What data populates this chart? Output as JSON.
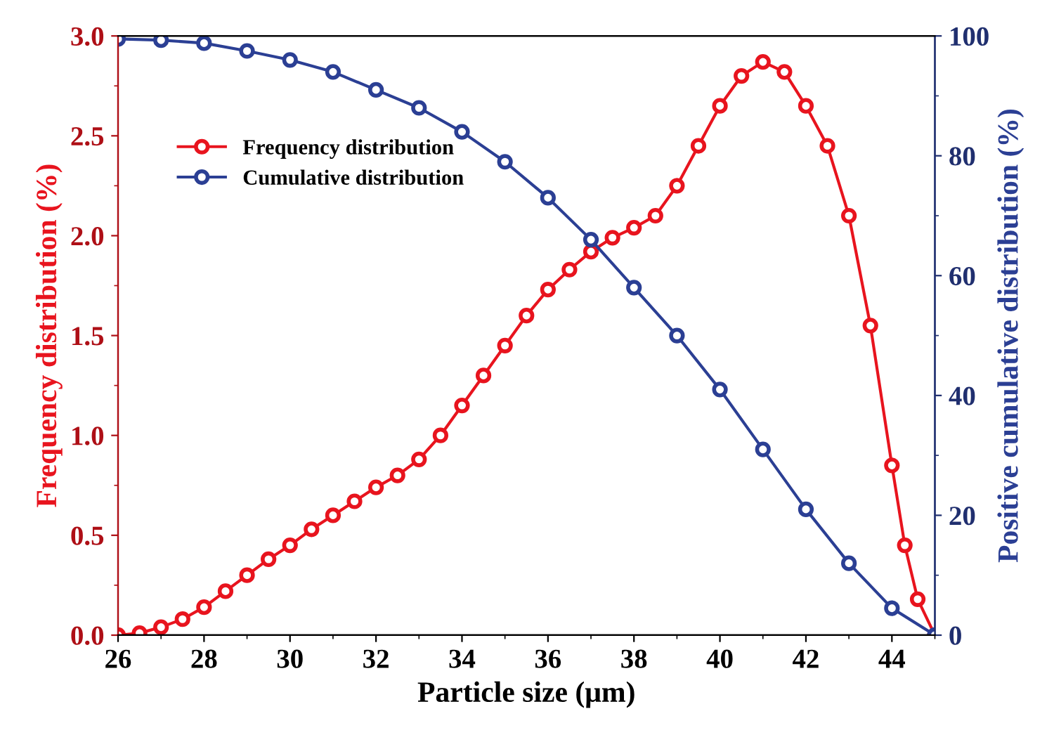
{
  "chart_data": {
    "type": "line",
    "xlabel": "Particle size (μm)",
    "ylabel": "Frequency distribution (%)",
    "y2label": "Positive cumulative distribution (%)",
    "xlim": [
      26,
      45
    ],
    "xticks": [
      26,
      28,
      30,
      32,
      34,
      36,
      38,
      40,
      42,
      44
    ],
    "ylim": [
      0,
      3
    ],
    "yticks": [
      {
        "value": 0,
        "label": "0.0"
      },
      0.5,
      {
        "value": 1,
        "label": "1.0"
      },
      1.5,
      {
        "value": 2,
        "label": "2.0"
      },
      2.5,
      {
        "value": 3,
        "label": "3.0"
      }
    ],
    "y2lim": [
      0,
      100
    ],
    "y2ticks": [
      0,
      20,
      40,
      60,
      80,
      100
    ],
    "marker": "circle",
    "line_style": "solid",
    "grid": false,
    "legend": "top left",
    "series": [
      {
        "name": "Frequency distribution",
        "color": "#e8141e",
        "x": [
          26,
          26.5,
          27,
          27.5,
          28,
          28.5,
          29,
          29.5,
          30,
          30.5,
          31,
          31.5,
          32,
          32.5,
          33,
          33.5,
          34,
          34.5,
          35,
          35.5,
          36,
          36.5,
          37,
          37.5,
          38,
          38.5,
          39,
          39.5,
          40,
          40.5,
          41,
          41.5,
          42,
          42.5,
          43,
          43.5,
          44,
          44.3,
          44.6,
          45
        ],
        "values": [
          0,
          0.01,
          0.04,
          0.08,
          0.14,
          0.22,
          0.3,
          0.38,
          0.45,
          0.53,
          0.6,
          0.67,
          0.74,
          0.8,
          0.88,
          1.0,
          1.15,
          1.3,
          1.45,
          1.6,
          1.73,
          1.83,
          1.92,
          1.99,
          2.04,
          2.1,
          2.25,
          2.45,
          2.65,
          2.8,
          2.87,
          2.82,
          2.65,
          2.45,
          2.1,
          1.55,
          0.85,
          0.45,
          0.18,
          0
        ]
      },
      {
        "name": "Cumulative distribution",
        "color": "#2b3f94",
        "axis": "y2",
        "x": [
          26,
          27,
          28,
          29,
          30,
          31,
          32,
          33,
          34,
          35,
          36,
          37,
          38,
          39,
          40,
          41,
          42,
          43,
          44,
          45
        ],
        "values": [
          99.5,
          99.3,
          98.8,
          97.5,
          96,
          94,
          91,
          88,
          84,
          79,
          73,
          66,
          58,
          50,
          41,
          31,
          21,
          12,
          4.5,
          0
        ]
      }
    ]
  }
}
